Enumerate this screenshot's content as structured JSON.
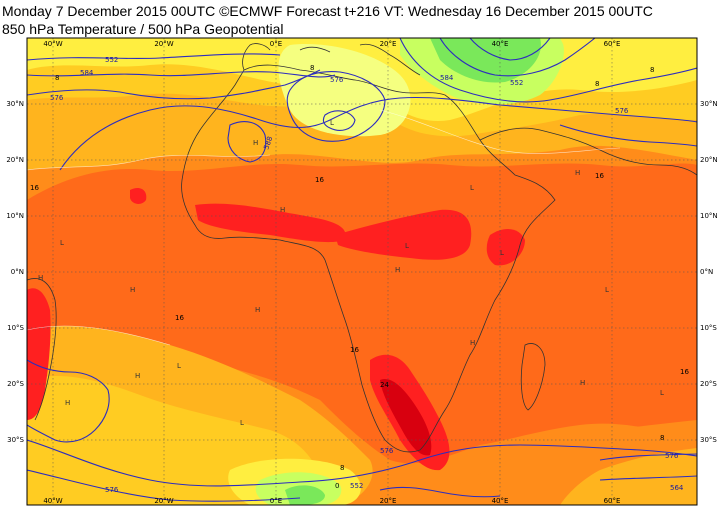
{
  "title": {
    "line1": "Monday 7 December 2015 00UTC ©ECMWF Forecast t+216 VT: Wednesday 16 December 2015 00UTC",
    "line2": "850 hPa Temperature / 500 hPa Geopotential"
  },
  "map": {
    "lon_labels_top": [
      "40°W",
      "20°W",
      "0°E",
      "20°E",
      "40°E",
      "60°E"
    ],
    "lon_labels_bottom": [
      "40°W",
      "20°W",
      "0°E",
      "20°E",
      "40°E",
      "60°E"
    ],
    "lat_labels_left": [
      "30°N",
      "20°N",
      "10°N",
      "0°N",
      "10°S",
      "20°S",
      "30°S"
    ],
    "lat_labels_right": [
      "30°N",
      "20°N",
      "10°N",
      "0°N",
      "10°S",
      "20°S",
      "30°S"
    ],
    "geopotential_labels": [
      {
        "text": "552",
        "color": "#1a1aa0"
      },
      {
        "text": "576",
        "color": "#1a1aa0"
      },
      {
        "text": "576",
        "color": "#1a1aa0"
      },
      {
        "text": "584",
        "color": "#1a1aa0"
      },
      {
        "text": "552",
        "color": "#1a1aa0"
      },
      {
        "text": "576",
        "color": "#1a1aa0"
      },
      {
        "text": "588",
        "color": "#1a1aa0"
      },
      {
        "text": "576",
        "color": "#1a1aa0"
      },
      {
        "text": "552",
        "color": "#1a1aa0"
      },
      {
        "text": "576",
        "color": "#1a1aa0"
      },
      {
        "text": "584",
        "color": "#1a1aa0"
      },
      {
        "text": "576",
        "color": "#1a1aa0"
      },
      {
        "text": "564",
        "color": "#1a1aa0"
      }
    ],
    "temperature_labels": [
      "8",
      "8",
      "8",
      "16",
      "16",
      "16",
      "16",
      "16",
      "16",
      "24",
      "8",
      "8",
      "0",
      "8"
    ],
    "pressure_marks": [
      "H",
      "H",
      "H",
      "H",
      "H",
      "L",
      "L",
      "L",
      "L",
      "L",
      "H",
      "H",
      "H",
      "L",
      "L",
      "H",
      "H",
      "L",
      "H",
      "L"
    ],
    "colors": {
      "deep_red": "#d8000f",
      "red": "#ff2020",
      "dark_orange": "#ff6a1a",
      "orange": "#ff8c1a",
      "light_orange": "#ffb41e",
      "amber": "#ffcc22",
      "yellow": "#ffee40",
      "light_yellow": "#f5ff80",
      "yellow_green": "#c8ff60",
      "green": "#7ae85a",
      "coast": "#333333",
      "contour": "#2d2dbe"
    }
  }
}
